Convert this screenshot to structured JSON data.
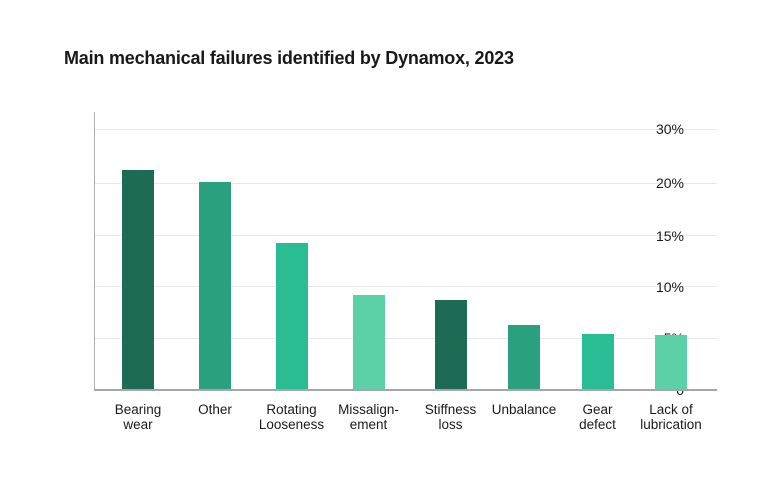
{
  "title": "Main mechanical failures identified by Dynamox, 2023",
  "chart_data": {
    "type": "bar",
    "title": "Main mechanical failures identified by Dynamox, 2023",
    "categories": [
      "Bearing wear",
      "Other",
      "Rotating Looseness",
      "Missalign-ement",
      "Stiffness loss",
      "Unbalance",
      "Gear defect",
      "Lack of lubrication"
    ],
    "category_label_lines": [
      [
        "Bearing",
        "wear"
      ],
      [
        "Other"
      ],
      [
        "Rotating",
        "Looseness"
      ],
      [
        "Missalign-",
        "ement"
      ],
      [
        "Stiffness",
        "loss"
      ],
      [
        "Unbalance"
      ],
      [
        "Gear",
        "defect"
      ],
      [
        "Lack of",
        "lubrication"
      ]
    ],
    "values": [
      21.3,
      20.1,
      14.2,
      9.2,
      8.7,
      6.3,
      5.4,
      5.3
    ],
    "unit": "%",
    "bar_colors": [
      "#1D6B55",
      "#29A17E",
      "#2ABD93",
      "#5CD1A8",
      "#1D6B55",
      "#29A17E",
      "#2ABD93",
      "#5CD1A8"
    ],
    "y_tick_labels": [
      "30%",
      "20%",
      "15%",
      "10%",
      "5%",
      "0"
    ],
    "y_tick_values": [
      30,
      20,
      15,
      10,
      5,
      0
    ],
    "ylim": [
      0,
      30
    ],
    "grid": true,
    "legend": "none",
    "background_color": "#ffffff",
    "title_color": "#191919",
    "axis_text_color": "#1a1a1a"
  }
}
